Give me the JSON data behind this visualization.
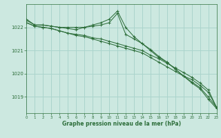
{
  "background_color": "#cce8e0",
  "grid_color": "#aad4cc",
  "line_color": "#2d6e3a",
  "x_ticks": [
    0,
    1,
    2,
    3,
    4,
    5,
    6,
    7,
    8,
    9,
    10,
    11,
    12,
    13,
    14,
    15,
    16,
    17,
    18,
    19,
    20,
    21,
    22,
    23
  ],
  "y_ticks": [
    1019,
    1020,
    1021,
    1022
  ],
  "ylim": [
    1018.3,
    1023.0
  ],
  "xlim": [
    0,
    23
  ],
  "xlabel": "Graphe pression niveau de la mer (hPa)",
  "series": [
    [
      1022.3,
      1022.1,
      1022.1,
      1022.05,
      1022.0,
      1022.0,
      1022.0,
      1022.0,
      1022.05,
      1022.1,
      1022.2,
      1022.6,
      1021.7,
      1021.5,
      1021.3,
      1021.0,
      1020.7,
      1020.5,
      1020.2,
      1019.9,
      1019.6,
      1019.35,
      1018.9,
      1018.5
    ],
    [
      1022.35,
      1022.1,
      1022.1,
      1022.05,
      1022.0,
      1021.95,
      1021.9,
      1022.0,
      1022.1,
      1022.2,
      1022.35,
      1022.7,
      1022.0,
      1021.6,
      1021.3,
      1021.05,
      1020.75,
      1020.5,
      1020.2,
      1019.9,
      1019.65,
      1019.4,
      1019.0,
      1018.55
    ],
    [
      1022.2,
      1022.05,
      1022.0,
      1021.95,
      1021.85,
      1021.75,
      1021.7,
      1021.65,
      1021.55,
      1021.5,
      1021.4,
      1021.3,
      1021.2,
      1021.1,
      1021.0,
      1020.8,
      1020.65,
      1020.45,
      1020.25,
      1020.05,
      1019.85,
      1019.6,
      1019.3,
      1018.55
    ],
    [
      1022.2,
      1022.05,
      1022.0,
      1021.95,
      1021.85,
      1021.75,
      1021.65,
      1021.6,
      1021.5,
      1021.4,
      1021.3,
      1021.2,
      1021.1,
      1021.0,
      1020.9,
      1020.7,
      1020.5,
      1020.3,
      1020.1,
      1019.9,
      1019.75,
      1019.5,
      1019.2,
      1018.55
    ]
  ]
}
